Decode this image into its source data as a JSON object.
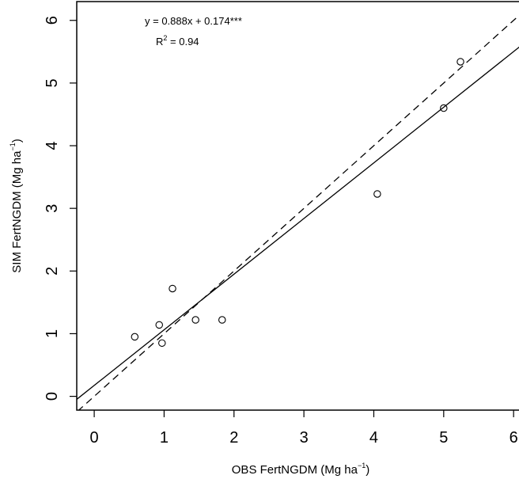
{
  "chart_data": {
    "type": "scatter",
    "title": "",
    "xlabel": "OBS FertNGDM (Mg ha",
    "xlabel_sup": "−1",
    "xlabel_close": ")",
    "ylabel": "SIM FertNGDM (Mg ha",
    "ylabel_sup": "−1",
    "ylabel_close": ")",
    "xlim": [
      -0.25,
      6.1
    ],
    "ylim": [
      -0.22,
      6.3
    ],
    "xticks": [
      0,
      1,
      2,
      3,
      4,
      5,
      6
    ],
    "yticks": [
      0,
      1,
      2,
      3,
      4,
      5,
      6
    ],
    "grid": false,
    "points": [
      {
        "x": 0.58,
        "y": 0.95
      },
      {
        "x": 0.93,
        "y": 1.14
      },
      {
        "x": 0.97,
        "y": 0.85
      },
      {
        "x": 1.12,
        "y": 1.72
      },
      {
        "x": 1.45,
        "y": 1.22
      },
      {
        "x": 1.83,
        "y": 1.22
      },
      {
        "x": 4.05,
        "y": 3.23
      },
      {
        "x": 5.0,
        "y": 4.6
      },
      {
        "x": 5.24,
        "y": 5.34
      }
    ],
    "regression": {
      "slope": 0.888,
      "intercept": 0.174,
      "style": "solid"
    },
    "identity_line": {
      "slope": 1,
      "intercept": 0,
      "style": "dashed"
    },
    "annotations": {
      "equation": "y = 0.888x + 0.174***",
      "r2_prefix": "R",
      "r2_sup": "2",
      "r2_value": " = 0.94"
    }
  }
}
